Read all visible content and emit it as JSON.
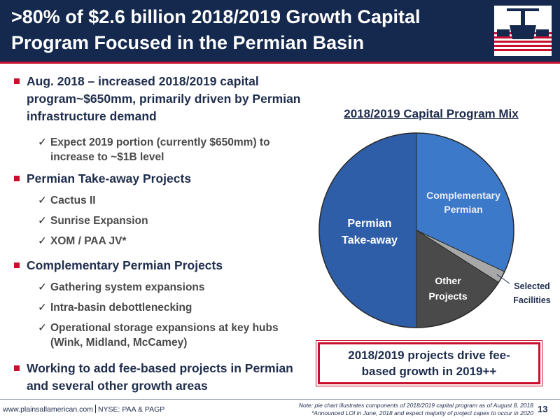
{
  "header": {
    "title_line1": ">80% of $2.6 billion 2018/2019 Growth Capital",
    "title_line2": "Program Focused in the Permian Basin",
    "logo_icon": "pipeline-valve-flag-icon"
  },
  "bullets": [
    {
      "level": 1,
      "text": "Aug. 2018 – increased 2018/2019 capital program~$650mm, primarily driven by Permian infrastructure demand"
    },
    {
      "level": 2,
      "text": "Expect 2019 portion (currently $650mm) to increase to ~$1B level"
    },
    {
      "level": 1,
      "text": "Permian Take-away Projects"
    },
    {
      "level": 2,
      "text": "Cactus II"
    },
    {
      "level": 2,
      "text": "Sunrise Expansion"
    },
    {
      "level": 2,
      "text": "XOM / PAA JV*"
    },
    {
      "level": 1,
      "text": "Complementary Permian Projects"
    },
    {
      "level": 2,
      "text": "Gathering system expansions"
    },
    {
      "level": 2,
      "text": "Intra-basin debottlenecking"
    },
    {
      "level": 2,
      "text": "Operational storage expansions at key hubs (Wink, Midland, McCamey)"
    },
    {
      "level": 1,
      "text": "Working to add fee-based projects in Permian and several other growth areas"
    }
  ],
  "check_glyph": "✓",
  "chart_data": {
    "type": "pie",
    "title": "2018/2019 Capital Program Mix",
    "slices": [
      {
        "label_lines": [
          "Complementary",
          "Permian"
        ],
        "value": 32,
        "color": "#3d79c9"
      },
      {
        "label_lines": [
          "Selected",
          "Facilities"
        ],
        "value": 2,
        "color": "#a8a8a8"
      },
      {
        "label_lines": [
          "Other",
          "Projects"
        ],
        "value": 16,
        "color": "#4a4a4a"
      },
      {
        "label_lines": [
          "Permian",
          "Take-away"
        ],
        "value": 50,
        "color": "#2e5ea8"
      }
    ],
    "start_angle_deg": 0,
    "direction": "clockwise"
  },
  "callout": {
    "text_line1": "2018/2019 projects drive fee-",
    "text_line2": "based growth in 2019++"
  },
  "footer": {
    "website": "www.plainsallamerican.com",
    "ticker": "NYSE: PAA & PAGP",
    "note1": "Note: pie chart illustrates components of 2018/2019 capital program as of August 8, 2018",
    "note2": "*Announced LOI in June, 2018 and expect majority of project capex to occur in 2020",
    "page_number": "13"
  }
}
